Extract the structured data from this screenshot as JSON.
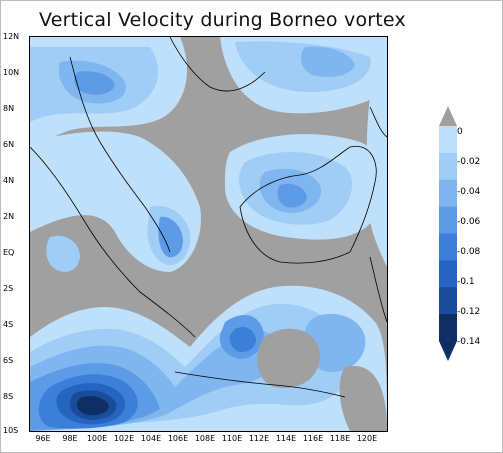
{
  "title": "Vertical Velocity during Borneo vortex",
  "lat_labels": [
    "12N",
    "10N",
    "8N",
    "6N",
    "4N",
    "2N",
    "EQ",
    "2S",
    "4S",
    "6S",
    "8S",
    "10S"
  ],
  "lon_labels": [
    "96E",
    "98E",
    "100E",
    "102E",
    "104E",
    "106E",
    "108E",
    "110E",
    "112E",
    "114E",
    "116E",
    "118E",
    "120E"
  ],
  "colorbar": {
    "labels": [
      "0",
      "-0.02",
      "-0.04",
      "-0.06",
      "-0.08",
      "-0.1",
      "-0.12",
      "-0.14"
    ],
    "colors": [
      "#bfe0fb",
      "#9fcdf6",
      "#7fb6f0",
      "#5d9be6",
      "#3c7fd8",
      "#2565c1",
      "#1a4c9c",
      "#0e2e64"
    ]
  },
  "colors": {
    "background_grey": "#a0a0a0",
    "coastline": "#000000"
  }
}
